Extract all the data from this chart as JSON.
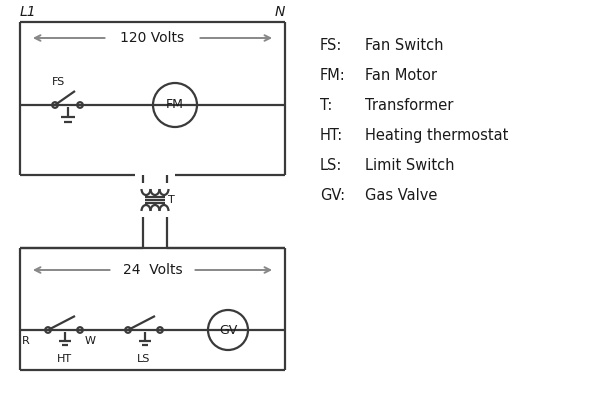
{
  "background_color": "#ffffff",
  "line_color": "#3a3a3a",
  "arrow_color": "#888888",
  "text_color": "#1a1a1a",
  "legend": [
    [
      "FS:",
      "Fan Switch"
    ],
    [
      "FM:",
      "Fan Motor"
    ],
    [
      "T:",
      "Transformer"
    ],
    [
      "HT:",
      "Heating thermostat"
    ],
    [
      "LS:",
      "Limit Switch"
    ],
    [
      "GV:",
      "Gas Valve"
    ]
  ],
  "volts_120": "120 Volts",
  "volts_24": "24  Volts",
  "L1_label": "L1",
  "N_label": "N",
  "R_label": "R",
  "W_label": "W",
  "HT_label": "HT",
  "LS_label": "LS",
  "FS_label": "FS",
  "FM_label": "FM",
  "T_label": "T",
  "GV_label": "GV"
}
